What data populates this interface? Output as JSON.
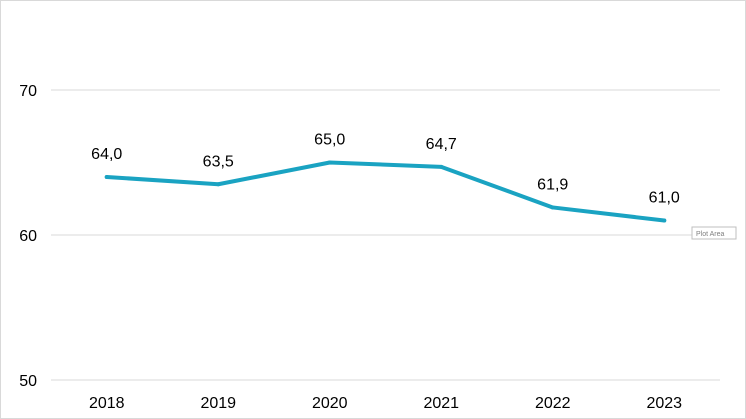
{
  "chart_data": {
    "type": "line",
    "categories": [
      "2018",
      "2019",
      "2020",
      "2021",
      "2022",
      "2023"
    ],
    "series": [
      {
        "values": [
          64.0,
          63.5,
          65.0,
          64.7,
          61.9,
          61.0
        ],
        "labels": [
          "64,0",
          "63,5",
          "65,0",
          "64,7",
          "61,9",
          "61,0"
        ],
        "color": "#1aa3c2"
      }
    ],
    "ylim": [
      50,
      70
    ],
    "yticks": [
      50,
      60,
      70
    ],
    "ytick_labels": [
      "50",
      "60",
      "70"
    ],
    "grid": true,
    "gridline_color": "#d9d9d9",
    "title": "",
    "xlabel": "",
    "ylabel": "",
    "legend": "none"
  },
  "tooltip": {
    "text": "Plot Area"
  }
}
